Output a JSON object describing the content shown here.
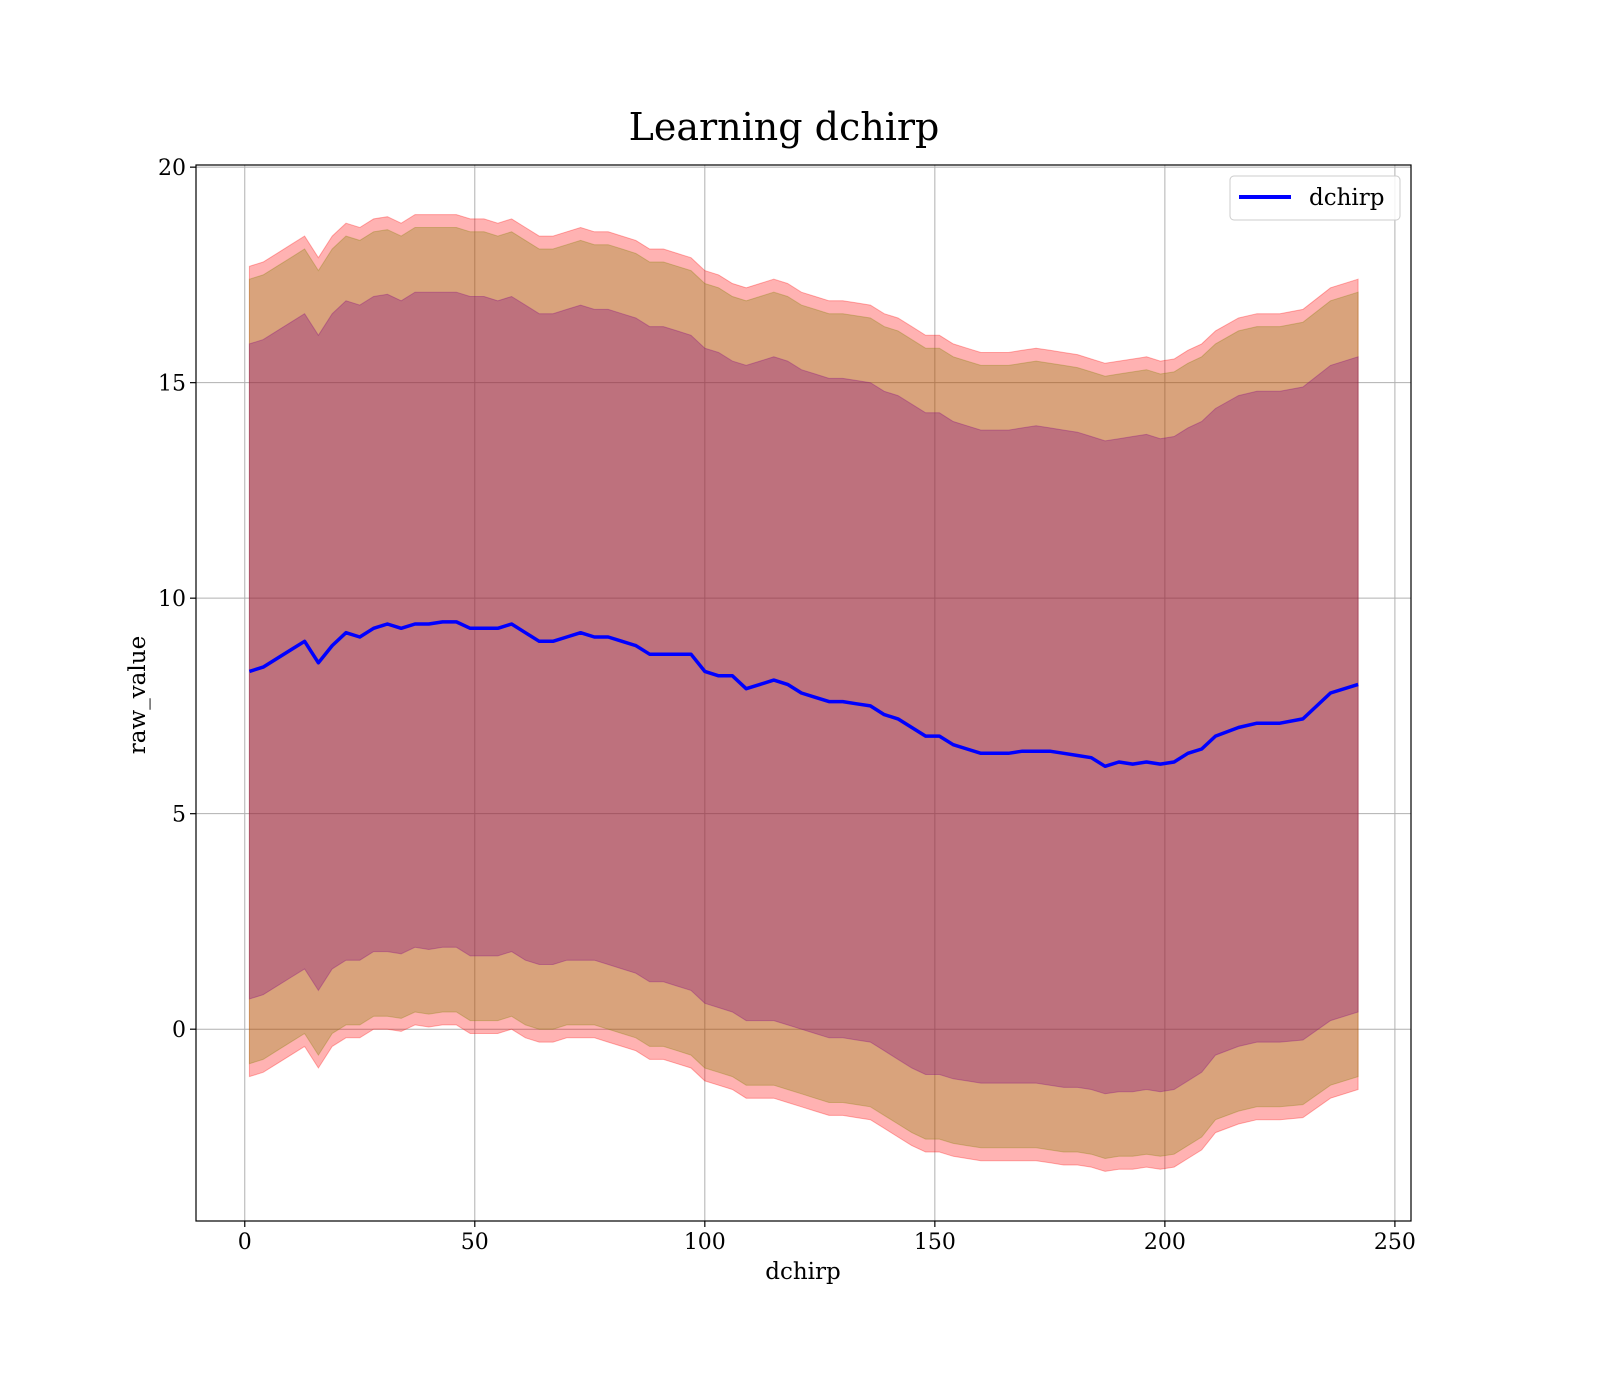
{
  "chart_data": {
    "type": "line",
    "title": "Learning dchirp",
    "xlabel": "dchirp",
    "ylabel": "raw_value",
    "xlim": [
      -10.6,
      253.5
    ],
    "ylim": [
      -4.45,
      20.05
    ],
    "xticks": [
      0,
      50,
      100,
      150,
      200,
      250
    ],
    "yticks": [
      0,
      5,
      10,
      15,
      20
    ],
    "grid": true,
    "legend": {
      "position": "upper right",
      "entries": [
        "dchirp"
      ]
    },
    "colors": {
      "line": "#0000ff",
      "band_outer": "#ff0000",
      "band_middle": "#808000",
      "band_inner": "#800080",
      "grid": "#b0b0b0"
    },
    "series": [
      {
        "name": "dchirp",
        "style": "line",
        "x": [
          1,
          4,
          7,
          10,
          13,
          16,
          19,
          22,
          25,
          28,
          31,
          34,
          37,
          40,
          43,
          46,
          49,
          52,
          55,
          58,
          61,
          64,
          67,
          70,
          73,
          76,
          79,
          82,
          85,
          88,
          91,
          94,
          97,
          100,
          103,
          106,
          109,
          112,
          115,
          118,
          121,
          124,
          127,
          130,
          133,
          136,
          139,
          142,
          145,
          148,
          151,
          154,
          157,
          160,
          163,
          166,
          169,
          172,
          175,
          178,
          181,
          184,
          187,
          190,
          193,
          196,
          199,
          202,
          205,
          208,
          211,
          216,
          220,
          225,
          230,
          236,
          242
        ],
        "values": [
          8.3,
          8.4,
          8.6,
          8.8,
          9.0,
          8.5,
          8.9,
          9.2,
          9.1,
          9.3,
          9.4,
          9.3,
          9.4,
          9.4,
          9.45,
          9.45,
          9.3,
          9.3,
          9.3,
          9.4,
          9.2,
          9.0,
          9.0,
          9.1,
          9.2,
          9.1,
          9.1,
          9.0,
          8.9,
          8.7,
          8.7,
          8.7,
          8.7,
          8.3,
          8.2,
          8.2,
          7.9,
          8.0,
          8.1,
          8.0,
          7.8,
          7.7,
          7.6,
          7.6,
          7.55,
          7.5,
          7.3,
          7.2,
          7.0,
          6.8,
          6.8,
          6.6,
          6.5,
          6.4,
          6.4,
          6.4,
          6.45,
          6.45,
          6.45,
          6.4,
          6.35,
          6.3,
          6.1,
          6.2,
          6.15,
          6.2,
          6.15,
          6.2,
          6.4,
          6.5,
          6.8,
          7.0,
          7.1,
          7.1,
          7.2,
          7.8,
          8.0
        ]
      },
      {
        "name": "",
        "style": "band",
        "color_key": "band_outer",
        "x": [
          1,
          4,
          7,
          10,
          13,
          16,
          19,
          22,
          25,
          28,
          31,
          34,
          37,
          40,
          43,
          46,
          49,
          52,
          55,
          58,
          61,
          64,
          67,
          70,
          73,
          76,
          79,
          82,
          85,
          88,
          91,
          94,
          97,
          100,
          103,
          106,
          109,
          112,
          115,
          118,
          121,
          124,
          127,
          130,
          133,
          136,
          139,
          142,
          145,
          148,
          151,
          154,
          157,
          160,
          163,
          166,
          169,
          172,
          175,
          178,
          181,
          184,
          187,
          190,
          193,
          196,
          199,
          202,
          205,
          208,
          211,
          216,
          220,
          225,
          230,
          236,
          242
        ],
        "upper": [
          17.7,
          17.8,
          18.0,
          18.2,
          18.4,
          17.9,
          18.4,
          18.7,
          18.6,
          18.8,
          18.85,
          18.7,
          18.9,
          18.9,
          18.9,
          18.9,
          18.8,
          18.8,
          18.7,
          18.8,
          18.6,
          18.4,
          18.4,
          18.5,
          18.6,
          18.5,
          18.5,
          18.4,
          18.3,
          18.1,
          18.1,
          18.0,
          17.9,
          17.6,
          17.5,
          17.3,
          17.2,
          17.3,
          17.4,
          17.3,
          17.1,
          17.0,
          16.9,
          16.9,
          16.85,
          16.8,
          16.6,
          16.5,
          16.3,
          16.1,
          16.1,
          15.9,
          15.8,
          15.7,
          15.7,
          15.7,
          15.75,
          15.8,
          15.75,
          15.7,
          15.65,
          15.55,
          15.45,
          15.5,
          15.55,
          15.6,
          15.5,
          15.55,
          15.75,
          15.9,
          16.2,
          16.5,
          16.6,
          16.6,
          16.7,
          17.2,
          17.4
        ],
        "lower": [
          -1.1,
          -1.0,
          -0.8,
          -0.6,
          -0.4,
          -0.9,
          -0.4,
          -0.2,
          -0.2,
          -0.0,
          0.0,
          -0.05,
          0.1,
          0.05,
          0.1,
          0.1,
          -0.1,
          -0.1,
          -0.1,
          0.0,
          -0.2,
          -0.3,
          -0.3,
          -0.2,
          -0.2,
          -0.2,
          -0.3,
          -0.4,
          -0.5,
          -0.7,
          -0.7,
          -0.8,
          -0.9,
          -1.2,
          -1.3,
          -1.4,
          -1.6,
          -1.6,
          -1.6,
          -1.7,
          -1.8,
          -1.9,
          -2.0,
          -2.0,
          -2.05,
          -2.1,
          -2.3,
          -2.5,
          -2.7,
          -2.85,
          -2.85,
          -2.95,
          -3.0,
          -3.05,
          -3.05,
          -3.05,
          -3.05,
          -3.05,
          -3.1,
          -3.15,
          -3.15,
          -3.2,
          -3.3,
          -3.25,
          -3.25,
          -3.2,
          -3.25,
          -3.2,
          -3.0,
          -2.8,
          -2.4,
          -2.2,
          -2.1,
          -2.1,
          -2.05,
          -1.6,
          -1.4
        ]
      },
      {
        "name": "",
        "style": "band",
        "color_key": "band_middle",
        "x": [
          1,
          4,
          7,
          10,
          13,
          16,
          19,
          22,
          25,
          28,
          31,
          34,
          37,
          40,
          43,
          46,
          49,
          52,
          55,
          58,
          61,
          64,
          67,
          70,
          73,
          76,
          79,
          82,
          85,
          88,
          91,
          94,
          97,
          100,
          103,
          106,
          109,
          112,
          115,
          118,
          121,
          124,
          127,
          130,
          133,
          136,
          139,
          142,
          145,
          148,
          151,
          154,
          157,
          160,
          163,
          166,
          169,
          172,
          175,
          178,
          181,
          184,
          187,
          190,
          193,
          196,
          199,
          202,
          205,
          208,
          211,
          216,
          220,
          225,
          230,
          236,
          242
        ],
        "upper": [
          17.4,
          17.5,
          17.7,
          17.9,
          18.1,
          17.6,
          18.1,
          18.4,
          18.3,
          18.5,
          18.55,
          18.4,
          18.6,
          18.6,
          18.6,
          18.6,
          18.5,
          18.5,
          18.4,
          18.5,
          18.3,
          18.1,
          18.1,
          18.2,
          18.3,
          18.2,
          18.2,
          18.1,
          18.0,
          17.8,
          17.8,
          17.7,
          17.6,
          17.3,
          17.2,
          17.0,
          16.9,
          17.0,
          17.1,
          17.0,
          16.8,
          16.7,
          16.6,
          16.6,
          16.55,
          16.5,
          16.3,
          16.2,
          16.0,
          15.8,
          15.8,
          15.6,
          15.5,
          15.4,
          15.4,
          15.4,
          15.45,
          15.5,
          15.45,
          15.4,
          15.35,
          15.25,
          15.15,
          15.2,
          15.25,
          15.3,
          15.2,
          15.25,
          15.45,
          15.6,
          15.9,
          16.2,
          16.3,
          16.3,
          16.4,
          16.9,
          17.1
        ],
        "lower": [
          -0.8,
          -0.7,
          -0.5,
          -0.3,
          -0.1,
          -0.6,
          -0.1,
          0.1,
          0.1,
          0.3,
          0.3,
          0.25,
          0.4,
          0.35,
          0.4,
          0.4,
          0.2,
          0.2,
          0.2,
          0.3,
          0.1,
          0.0,
          0.0,
          0.1,
          0.1,
          0.1,
          0.0,
          -0.1,
          -0.2,
          -0.4,
          -0.4,
          -0.5,
          -0.6,
          -0.9,
          -1.0,
          -1.1,
          -1.3,
          -1.3,
          -1.3,
          -1.4,
          -1.5,
          -1.6,
          -1.7,
          -1.7,
          -1.75,
          -1.8,
          -2.0,
          -2.2,
          -2.4,
          -2.55,
          -2.55,
          -2.65,
          -2.7,
          -2.75,
          -2.75,
          -2.75,
          -2.75,
          -2.75,
          -2.8,
          -2.85,
          -2.85,
          -2.9,
          -3.0,
          -2.95,
          -2.95,
          -2.9,
          -2.95,
          -2.9,
          -2.7,
          -2.5,
          -2.1,
          -1.9,
          -1.8,
          -1.8,
          -1.75,
          -1.3,
          -1.1
        ]
      },
      {
        "name": "",
        "style": "band",
        "color_key": "band_inner",
        "x": [
          1,
          4,
          7,
          10,
          13,
          16,
          19,
          22,
          25,
          28,
          31,
          34,
          37,
          40,
          43,
          46,
          49,
          52,
          55,
          58,
          61,
          64,
          67,
          70,
          73,
          76,
          79,
          82,
          85,
          88,
          91,
          94,
          97,
          100,
          103,
          106,
          109,
          112,
          115,
          118,
          121,
          124,
          127,
          130,
          133,
          136,
          139,
          142,
          145,
          148,
          151,
          154,
          157,
          160,
          163,
          166,
          169,
          172,
          175,
          178,
          181,
          184,
          187,
          190,
          193,
          196,
          199,
          202,
          205,
          208,
          211,
          216,
          220,
          225,
          230,
          236,
          242
        ],
        "upper": [
          15.9,
          16.0,
          16.2,
          16.4,
          16.6,
          16.1,
          16.6,
          16.9,
          16.8,
          17.0,
          17.05,
          16.9,
          17.1,
          17.1,
          17.1,
          17.1,
          17.0,
          17.0,
          16.9,
          17.0,
          16.8,
          16.6,
          16.6,
          16.7,
          16.8,
          16.7,
          16.7,
          16.6,
          16.5,
          16.3,
          16.3,
          16.2,
          16.1,
          15.8,
          15.7,
          15.5,
          15.4,
          15.5,
          15.6,
          15.5,
          15.3,
          15.2,
          15.1,
          15.1,
          15.05,
          15.0,
          14.8,
          14.7,
          14.5,
          14.3,
          14.3,
          14.1,
          14.0,
          13.9,
          13.9,
          13.9,
          13.95,
          14.0,
          13.95,
          13.9,
          13.85,
          13.75,
          13.65,
          13.7,
          13.75,
          13.8,
          13.7,
          13.75,
          13.95,
          14.1,
          14.4,
          14.7,
          14.8,
          14.8,
          14.9,
          15.4,
          15.6
        ],
        "lower": [
          0.7,
          0.8,
          1.0,
          1.2,
          1.4,
          0.9,
          1.4,
          1.6,
          1.6,
          1.8,
          1.8,
          1.75,
          1.9,
          1.85,
          1.9,
          1.9,
          1.7,
          1.7,
          1.7,
          1.8,
          1.6,
          1.5,
          1.5,
          1.6,
          1.6,
          1.6,
          1.5,
          1.4,
          1.3,
          1.1,
          1.1,
          1.0,
          0.9,
          0.6,
          0.5,
          0.4,
          0.2,
          0.2,
          0.2,
          0.1,
          0.0,
          -0.1,
          -0.2,
          -0.2,
          -0.25,
          -0.3,
          -0.5,
          -0.7,
          -0.9,
          -1.05,
          -1.05,
          -1.15,
          -1.2,
          -1.25,
          -1.25,
          -1.25,
          -1.25,
          -1.25,
          -1.3,
          -1.35,
          -1.35,
          -1.4,
          -1.5,
          -1.45,
          -1.45,
          -1.4,
          -1.45,
          -1.4,
          -1.2,
          -1.0,
          -0.6,
          -0.4,
          -0.3,
          -0.3,
          -0.25,
          0.2,
          0.4
        ]
      }
    ]
  }
}
